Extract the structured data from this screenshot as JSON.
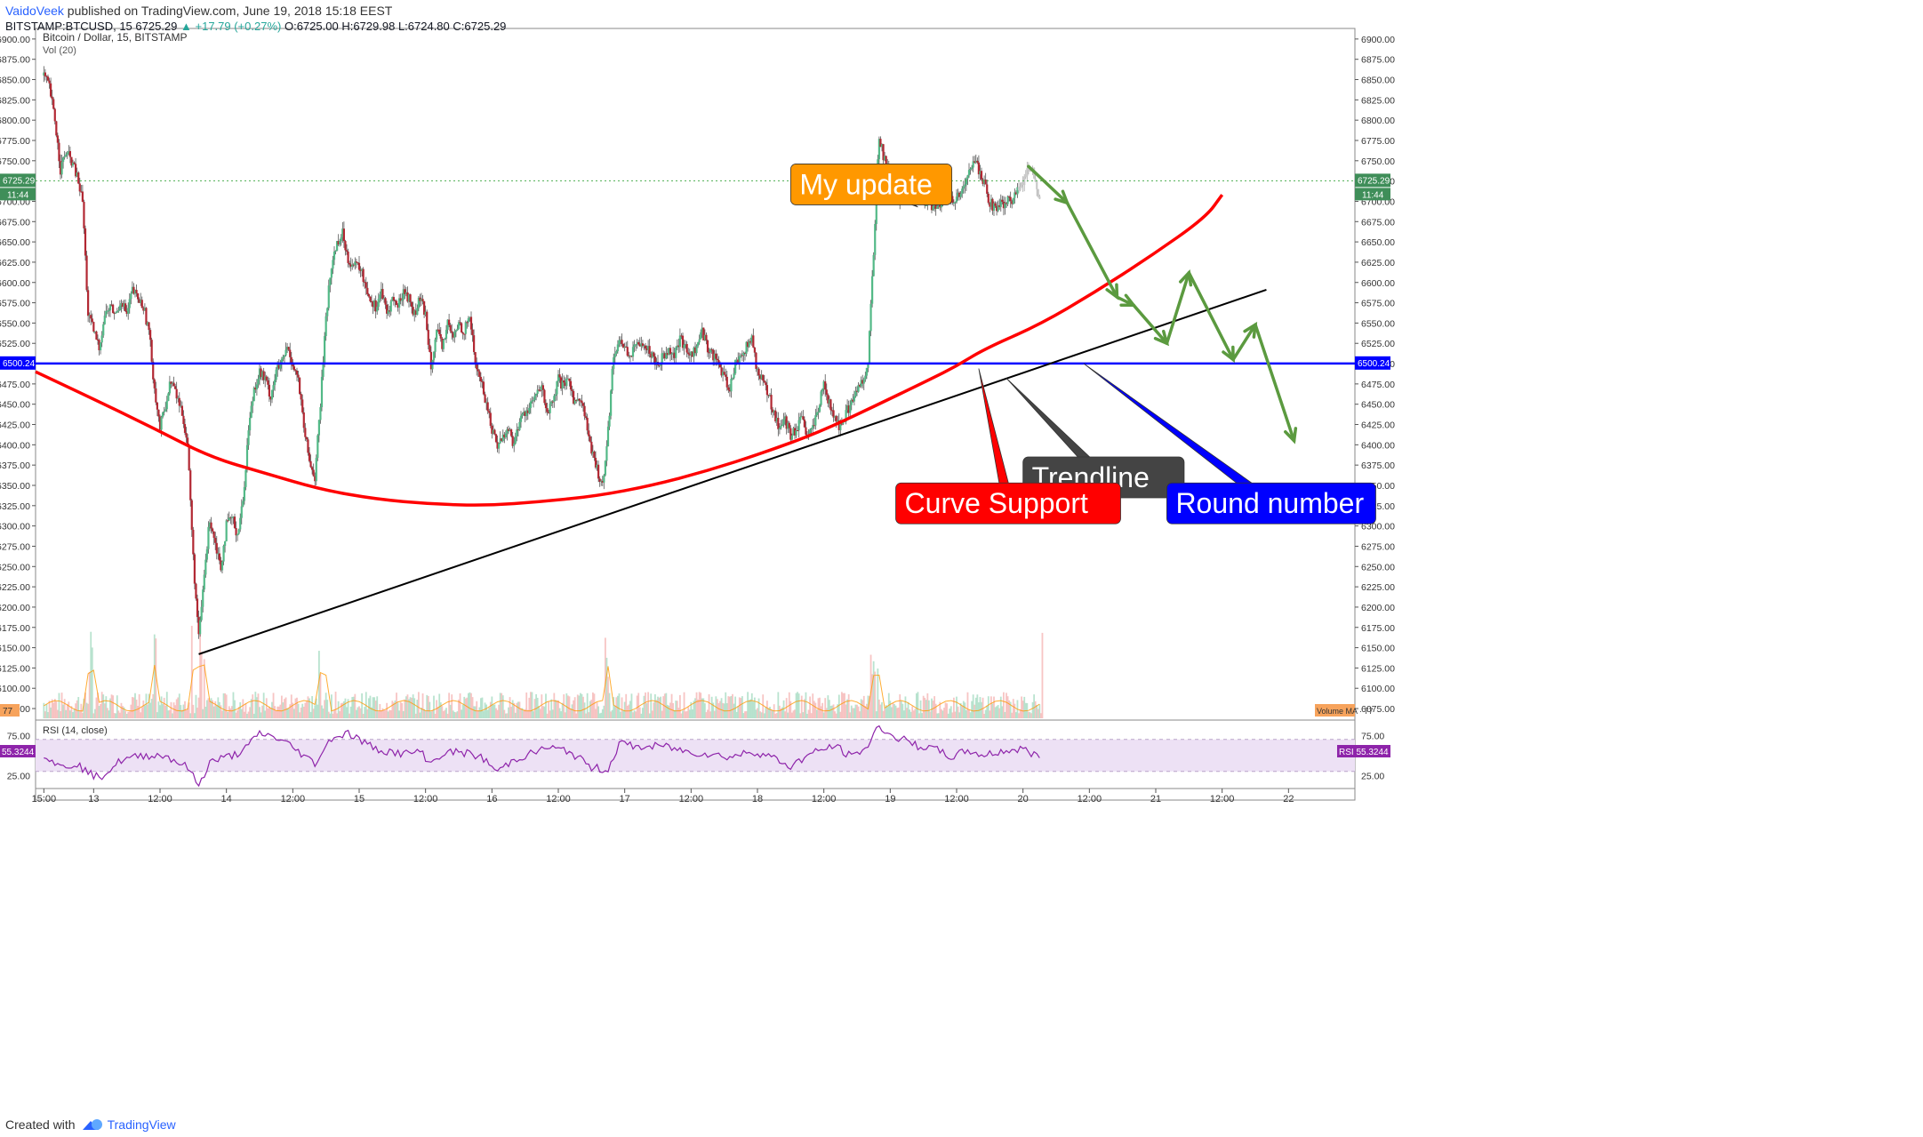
{
  "header": {
    "author": "VaidoVeek",
    "published": " published on TradingView.com, June 19, 2018 15:18 EEST",
    "symbol_line": "BITSTAMP:BTCUSD, 15  6725.29",
    "change": "▲ +17.79 (+0.27%)",
    "o": "O:6725.00",
    "h": "H:6729.98",
    "l": "L:6724.80",
    "c": "C:6725.29"
  },
  "footer": {
    "created_with": "Created with",
    "brand": "TradingView"
  },
  "chart_data": {
    "type": "candlestick",
    "title": "Bitcoin / Dollar, 15, BITSTAMP",
    "indicator_label": "Vol (20)",
    "rsi_label": "RSI (14, close)",
    "ylim": [
      6063,
      6913
    ],
    "y_ticks": [
      6075,
      6100,
      6125,
      6150,
      6175,
      6200,
      6225,
      6250,
      6275,
      6300,
      6325,
      6350,
      6375,
      6400,
      6425,
      6450,
      6475,
      6500,
      6525,
      6550,
      6575,
      6600,
      6625,
      6650,
      6675,
      6700,
      6725,
      6750,
      6775,
      6800,
      6825,
      6850,
      6875,
      6900
    ],
    "x_labels": [
      {
        "t": 0,
        "label": "15:00"
      },
      {
        "t": 9,
        "label": "13"
      },
      {
        "t": 21,
        "label": "12:00"
      },
      {
        "t": 33,
        "label": "14"
      },
      {
        "t": 45,
        "label": "12:00"
      },
      {
        "t": 57,
        "label": "15"
      },
      {
        "t": 69,
        "label": "12:00"
      },
      {
        "t": 81,
        "label": "16"
      },
      {
        "t": 93,
        "label": "12:00"
      },
      {
        "t": 105,
        "label": "17"
      },
      {
        "t": 117,
        "label": "12:00"
      },
      {
        "t": 129,
        "label": "18"
      },
      {
        "t": 141,
        "label": "12:00"
      },
      {
        "t": 153,
        "label": "19"
      },
      {
        "t": 165,
        "label": "12:00"
      },
      {
        "t": 177,
        "label": "20"
      },
      {
        "t": 189,
        "label": "12:00"
      },
      {
        "t": 201,
        "label": "21"
      },
      {
        "t": 213,
        "label": "12:00"
      },
      {
        "t": 225,
        "label": "22"
      }
    ],
    "x_range": [
      -1.5,
      237
    ],
    "price_path": [
      [
        0,
        6855
      ],
      [
        1,
        6840
      ],
      [
        2,
        6800
      ],
      [
        3,
        6740
      ],
      [
        4,
        6760
      ],
      [
        5,
        6750
      ],
      [
        6,
        6730
      ],
      [
        7,
        6700
      ],
      [
        8,
        6560
      ],
      [
        9,
        6540
      ],
      [
        10,
        6520
      ],
      [
        11,
        6560
      ],
      [
        12,
        6570
      ],
      [
        13,
        6560
      ],
      [
        14,
        6580
      ],
      [
        15,
        6560
      ],
      [
        16,
        6590
      ],
      [
        17,
        6580
      ],
      [
        18,
        6570
      ],
      [
        19,
        6540
      ],
      [
        20,
        6470
      ],
      [
        21,
        6420
      ],
      [
        22,
        6450
      ],
      [
        23,
        6480
      ],
      [
        24,
        6460
      ],
      [
        25,
        6440
      ],
      [
        26,
        6400
      ],
      [
        27,
        6260
      ],
      [
        28,
        6160
      ],
      [
        29,
        6240
      ],
      [
        30,
        6310
      ],
      [
        31,
        6280
      ],
      [
        32,
        6250
      ],
      [
        33,
        6300
      ],
      [
        34,
        6310
      ],
      [
        35,
        6290
      ],
      [
        36,
        6330
      ],
      [
        37,
        6420
      ],
      [
        38,
        6470
      ],
      [
        39,
        6490
      ],
      [
        40,
        6480
      ],
      [
        41,
        6460
      ],
      [
        42,
        6490
      ],
      [
        43,
        6500
      ],
      [
        44,
        6520
      ],
      [
        45,
        6500
      ],
      [
        46,
        6480
      ],
      [
        47,
        6420
      ],
      [
        48,
        6380
      ],
      [
        49,
        6360
      ],
      [
        50,
        6450
      ],
      [
        51,
        6560
      ],
      [
        52,
        6620
      ],
      [
        53,
        6650
      ],
      [
        54,
        6660
      ],
      [
        55,
        6630
      ],
      [
        56,
        6620
      ],
      [
        57,
        6620
      ],
      [
        58,
        6600
      ],
      [
        59,
        6580
      ],
      [
        60,
        6570
      ],
      [
        61,
        6590
      ],
      [
        62,
        6560
      ],
      [
        63,
        6580
      ],
      [
        64,
        6570
      ],
      [
        65,
        6590
      ],
      [
        66,
        6580
      ],
      [
        67,
        6560
      ],
      [
        68,
        6580
      ],
      [
        69,
        6560
      ],
      [
        70,
        6500
      ],
      [
        71,
        6540
      ],
      [
        72,
        6520
      ],
      [
        73,
        6550
      ],
      [
        74,
        6530
      ],
      [
        75,
        6550
      ],
      [
        76,
        6540
      ],
      [
        77,
        6560
      ],
      [
        78,
        6500
      ],
      [
        79,
        6480
      ],
      [
        80,
        6450
      ],
      [
        81,
        6420
      ],
      [
        82,
        6400
      ],
      [
        83,
        6410
      ],
      [
        84,
        6420
      ],
      [
        85,
        6400
      ],
      [
        86,
        6430
      ],
      [
        87,
        6440
      ],
      [
        88,
        6450
      ],
      [
        89,
        6460
      ],
      [
        90,
        6470
      ],
      [
        91,
        6440
      ],
      [
        92,
        6450
      ],
      [
        93,
        6480
      ],
      [
        94,
        6470
      ],
      [
        95,
        6480
      ],
      [
        96,
        6450
      ],
      [
        97,
        6460
      ],
      [
        98,
        6430
      ],
      [
        99,
        6390
      ],
      [
        100,
        6370
      ],
      [
        101,
        6350
      ],
      [
        102,
        6420
      ],
      [
        103,
        6510
      ],
      [
        104,
        6530
      ],
      [
        105,
        6520
      ],
      [
        106,
        6510
      ],
      [
        107,
        6520
      ],
      [
        108,
        6530
      ],
      [
        109,
        6520
      ],
      [
        110,
        6510
      ],
      [
        111,
        6500
      ],
      [
        112,
        6510
      ],
      [
        113,
        6520
      ],
      [
        114,
        6510
      ],
      [
        115,
        6530
      ],
      [
        116,
        6520
      ],
      [
        117,
        6510
      ],
      [
        118,
        6520
      ],
      [
        119,
        6540
      ],
      [
        120,
        6520
      ],
      [
        121,
        6510
      ],
      [
        122,
        6500
      ],
      [
        123,
        6480
      ],
      [
        124,
        6470
      ],
      [
        125,
        6500
      ],
      [
        126,
        6510
      ],
      [
        127,
        6520
      ],
      [
        128,
        6530
      ],
      [
        129,
        6490
      ],
      [
        130,
        6480
      ],
      [
        131,
        6460
      ],
      [
        132,
        6440
      ],
      [
        133,
        6420
      ],
      [
        134,
        6430
      ],
      [
        135,
        6410
      ],
      [
        136,
        6420
      ],
      [
        137,
        6430
      ],
      [
        138,
        6410
      ],
      [
        139,
        6420
      ],
      [
        140,
        6440
      ],
      [
        141,
        6480
      ],
      [
        142,
        6450
      ],
      [
        143,
        6430
      ],
      [
        144,
        6420
      ],
      [
        145,
        6440
      ],
      [
        146,
        6450
      ],
      [
        147,
        6470
      ],
      [
        148,
        6480
      ],
      [
        149,
        6500
      ],
      [
        150,
        6640
      ],
      [
        151,
        6780
      ],
      [
        152,
        6750
      ],
      [
        153,
        6730
      ],
      [
        154,
        6710
      ],
      [
        155,
        6700
      ],
      [
        156,
        6720
      ],
      [
        157,
        6710
      ],
      [
        158,
        6705
      ],
      [
        159,
        6695
      ],
      [
        160,
        6700
      ],
      [
        161,
        6690
      ],
      [
        162,
        6695
      ],
      [
        163,
        6700
      ],
      [
        164,
        6700
      ],
      [
        165,
        6705
      ],
      [
        166,
        6710
      ],
      [
        167,
        6730
      ],
      [
        168,
        6750
      ],
      [
        169,
        6740
      ],
      [
        170,
        6720
      ],
      [
        171,
        6700
      ],
      [
        172,
        6690
      ],
      [
        173,
        6695
      ],
      [
        174,
        6700
      ],
      [
        175,
        6700
      ],
      [
        176,
        6715
      ],
      [
        177,
        6725
      ],
      [
        178,
        6740
      ],
      [
        179,
        6735
      ],
      [
        180,
        6700
      ]
    ],
    "volume_ma_label": "Volume MA",
    "volume_ma_value": "77",
    "volume_spikes": [
      [
        8,
        0.9
      ],
      [
        9,
        0.9
      ],
      [
        20,
        0.9
      ],
      [
        27,
        1.0
      ],
      [
        28,
        1.0
      ],
      [
        29,
        1.0
      ],
      [
        50,
        0.9
      ],
      [
        51,
        0.9
      ],
      [
        102,
        0.9
      ],
      [
        150,
        0.9
      ],
      [
        151,
        0.9
      ],
      [
        181,
        0.9
      ]
    ],
    "rsi_ylim": [
      12,
      92
    ],
    "rsi_ticks": [
      25,
      75
    ],
    "rsi_band": [
      30,
      70
    ],
    "rsi_path": [
      [
        0,
        52
      ],
      [
        3,
        35
      ],
      [
        6,
        40
      ],
      [
        8,
        28
      ],
      [
        10,
        22
      ],
      [
        14,
        44
      ],
      [
        18,
        50
      ],
      [
        22,
        50
      ],
      [
        26,
        35
      ],
      [
        28,
        12
      ],
      [
        30,
        42
      ],
      [
        34,
        50
      ],
      [
        36,
        55
      ],
      [
        39,
        78
      ],
      [
        42,
        72
      ],
      [
        44,
        65
      ],
      [
        47,
        50
      ],
      [
        49,
        40
      ],
      [
        52,
        72
      ],
      [
        55,
        78
      ],
      [
        60,
        58
      ],
      [
        65,
        52
      ],
      [
        68,
        55
      ],
      [
        70,
        40
      ],
      [
        72,
        52
      ],
      [
        75,
        55
      ],
      [
        79,
        48
      ],
      [
        82,
        30
      ],
      [
        85,
        45
      ],
      [
        88,
        52
      ],
      [
        91,
        60
      ],
      [
        95,
        55
      ],
      [
        99,
        35
      ],
      [
        102,
        32
      ],
      [
        104,
        65
      ],
      [
        108,
        60
      ],
      [
        112,
        62
      ],
      [
        116,
        55
      ],
      [
        120,
        52
      ],
      [
        124,
        48
      ],
      [
        128,
        55
      ],
      [
        131,
        50
      ],
      [
        135,
        36
      ],
      [
        138,
        50
      ],
      [
        141,
        58
      ],
      [
        143,
        62
      ],
      [
        146,
        48
      ],
      [
        149,
        62
      ],
      [
        151,
        88
      ],
      [
        153,
        75
      ],
      [
        156,
        68
      ],
      [
        158,
        62
      ],
      [
        161,
        58
      ],
      [
        164,
        48
      ],
      [
        167,
        56
      ],
      [
        170,
        50
      ],
      [
        173,
        55
      ],
      [
        177,
        58
      ],
      [
        180,
        48
      ]
    ],
    "current_price": "6725.29",
    "current_price_value": 6725.29,
    "countdown": "11:44",
    "round_number_price": "6500.24",
    "round_number_value": 6500.24,
    "rsi_value": "55.3244",
    "rsi_axis_label": "RSI",
    "drawings": {
      "trendline": {
        "from": [
          28,
          6142
        ],
        "to": [
          221,
          6591
        ],
        "color": "#000000"
      },
      "curve_support": {
        "points": [
          [
            -1.5,
            6490
          ],
          [
            10,
            6453
          ],
          [
            20,
            6420
          ],
          [
            30,
            6385
          ],
          [
            40,
            6365
          ],
          [
            50,
            6345
          ],
          [
            60,
            6333
          ],
          [
            70,
            6327
          ],
          [
            80,
            6325
          ],
          [
            90,
            6330
          ],
          [
            100,
            6337
          ],
          [
            110,
            6350
          ],
          [
            120,
            6368
          ],
          [
            130,
            6390
          ],
          [
            140,
            6415
          ],
          [
            150,
            6447
          ],
          [
            160,
            6480
          ],
          [
            165,
            6497
          ],
          [
            170,
            6518
          ],
          [
            180,
            6548
          ],
          [
            190,
            6588
          ],
          [
            200,
            6632
          ],
          [
            210,
            6680
          ],
          [
            213,
            6708
          ]
        ],
        "color": "#ff0000"
      },
      "projection": {
        "points": [
          [
            178,
            6743
          ],
          [
            185,
            6698
          ],
          [
            194,
            6582
          ],
          [
            197,
            6572
          ],
          [
            203,
            6525
          ],
          [
            207,
            6612
          ],
          [
            215,
            6505
          ],
          [
            219,
            6548
          ],
          [
            226,
            6405
          ]
        ],
        "color": "#5b9a3f"
      }
    },
    "annotations": [
      {
        "text": "My update",
        "bg": "#ff9800",
        "fg": "#ffffff",
        "box_t": 135,
        "box_y": 6746,
        "target": [
          158,
          6693
        ]
      },
      {
        "text": "Trendline",
        "bg": "#444444",
        "fg": "#ffffff",
        "box_t": 177,
        "box_y": 6385,
        "target": [
          174,
          6482
        ]
      },
      {
        "text": "Curve Support",
        "bg": "#ff0000",
        "fg": "#ffffff",
        "box_t": 154,
        "box_y": 6353,
        "target": [
          169,
          6494
        ]
      },
      {
        "text": "Round number",
        "bg": "#0000ff",
        "fg": "#ffffff",
        "box_t": 203,
        "box_y": 6353,
        "target": [
          188,
          6500
        ]
      }
    ],
    "colors": {
      "up": "#26a69a",
      "down": "#ef5350",
      "candle_up": "#53b987",
      "candle_down": "#b22833",
      "rsi": "#8e24aa",
      "rsi_band": "#ede1f5",
      "round_line": "#0000ff",
      "price_line": "#4caf50",
      "volume_ma": "#ff9800"
    }
  }
}
